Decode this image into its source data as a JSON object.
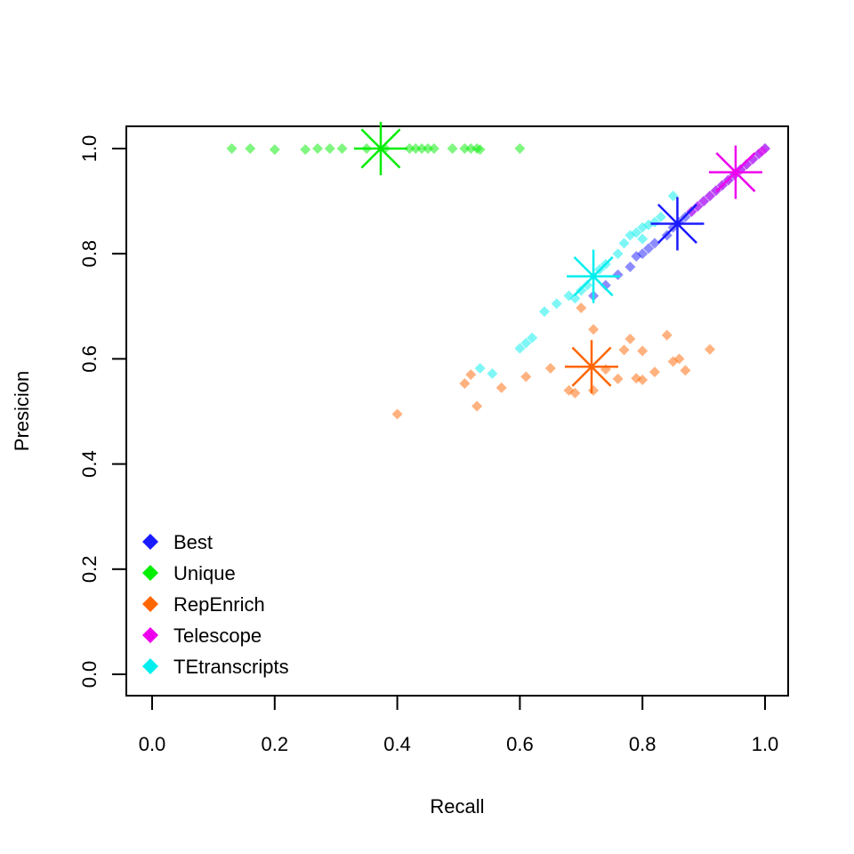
{
  "chart_data": {
    "type": "scatter",
    "title": "",
    "xlabel": "Recall",
    "ylabel": "Presicion",
    "xlim": [
      0,
      1
    ],
    "ylim": [
      0,
      1
    ],
    "x_ticks": [
      "0.0",
      "0.2",
      "0.4",
      "0.6",
      "0.8",
      "1.0"
    ],
    "y_ticks": [
      "0.0",
      "0.2",
      "0.4",
      "0.6",
      "0.8",
      "1.0"
    ],
    "grid": false,
    "legend_position": "bottom-left",
    "series": [
      {
        "name": "Best",
        "color": "#1a1aff",
        "points": [
          [
            0.72,
            0.72
          ],
          [
            0.74,
            0.74
          ],
          [
            0.76,
            0.76
          ],
          [
            0.78,
            0.775
          ],
          [
            0.79,
            0.795
          ],
          [
            0.8,
            0.8
          ],
          [
            0.81,
            0.81
          ],
          [
            0.82,
            0.82
          ],
          [
            0.84,
            0.835
          ],
          [
            0.85,
            0.85
          ],
          [
            0.86,
            0.86
          ],
          [
            0.87,
            0.87
          ],
          [
            0.88,
            0.88
          ],
          [
            0.89,
            0.89
          ],
          [
            0.9,
            0.9
          ],
          [
            0.91,
            0.91
          ],
          [
            0.92,
            0.92
          ],
          [
            0.93,
            0.93
          ],
          [
            0.94,
            0.94
          ],
          [
            0.95,
            0.95
          ],
          [
            0.96,
            0.96
          ],
          [
            0.97,
            0.97
          ],
          [
            0.98,
            0.98
          ],
          [
            0.99,
            0.99
          ],
          [
            1.0,
            1.0
          ]
        ],
        "mean": [
          0.857,
          0.857
        ]
      },
      {
        "name": "Unique",
        "color": "#00ee00",
        "points": [
          [
            0.13,
            1.0
          ],
          [
            0.16,
            1.0
          ],
          [
            0.2,
            0.998
          ],
          [
            0.25,
            0.998
          ],
          [
            0.27,
            1.0
          ],
          [
            0.29,
            1.0
          ],
          [
            0.31,
            1.0
          ],
          [
            0.35,
            1.0
          ],
          [
            0.38,
            1.0
          ],
          [
            0.42,
            1.0
          ],
          [
            0.43,
            1.0
          ],
          [
            0.44,
            1.0
          ],
          [
            0.45,
            1.0
          ],
          [
            0.46,
            1.0
          ],
          [
            0.49,
            1.0
          ],
          [
            0.51,
            1.0
          ],
          [
            0.52,
            1.0
          ],
          [
            0.53,
            1.0
          ],
          [
            0.535,
            0.998
          ],
          [
            0.6,
            1.0
          ]
        ],
        "mean": [
          0.373,
          1.0
        ]
      },
      {
        "name": "RepEnrich",
        "color": "#ff6600",
        "points": [
          [
            0.4,
            0.495
          ],
          [
            0.51,
            0.553
          ],
          [
            0.52,
            0.57
          ],
          [
            0.53,
            0.51
          ],
          [
            0.57,
            0.545
          ],
          [
            0.61,
            0.566
          ],
          [
            0.65,
            0.582
          ],
          [
            0.68,
            0.54
          ],
          [
            0.69,
            0.535
          ],
          [
            0.7,
            0.697
          ],
          [
            0.72,
            0.656
          ],
          [
            0.72,
            0.54
          ],
          [
            0.74,
            0.58
          ],
          [
            0.76,
            0.562
          ],
          [
            0.77,
            0.617
          ],
          [
            0.78,
            0.638
          ],
          [
            0.79,
            0.563
          ],
          [
            0.8,
            0.56
          ],
          [
            0.8,
            0.615
          ],
          [
            0.82,
            0.575
          ],
          [
            0.84,
            0.645
          ],
          [
            0.85,
            0.595
          ],
          [
            0.86,
            0.6
          ],
          [
            0.87,
            0.578
          ],
          [
            0.91,
            0.618
          ]
        ],
        "mean": [
          0.717,
          0.585
        ]
      },
      {
        "name": "Telescope",
        "color": "#ee00ee",
        "points": [
          [
            0.88,
            0.88
          ],
          [
            0.89,
            0.89
          ],
          [
            0.9,
            0.9
          ],
          [
            0.91,
            0.91
          ],
          [
            0.92,
            0.92
          ],
          [
            0.93,
            0.93
          ],
          [
            0.94,
            0.94
          ],
          [
            0.95,
            0.95
          ],
          [
            0.96,
            0.96
          ],
          [
            0.97,
            0.97
          ],
          [
            0.98,
            0.98
          ],
          [
            0.99,
            0.99
          ],
          [
            0.995,
            0.995
          ],
          [
            1.0,
            1.0
          ]
        ],
        "mean": [
          0.952,
          0.955
        ]
      },
      {
        "name": "TEtranscripts",
        "color": "#00eeee",
        "points": [
          [
            0.535,
            0.582
          ],
          [
            0.555,
            0.572
          ],
          [
            0.6,
            0.62
          ],
          [
            0.61,
            0.63
          ],
          [
            0.62,
            0.64
          ],
          [
            0.64,
            0.69
          ],
          [
            0.66,
            0.705
          ],
          [
            0.68,
            0.72
          ],
          [
            0.69,
            0.715
          ],
          [
            0.7,
            0.73
          ],
          [
            0.71,
            0.74
          ],
          [
            0.73,
            0.77
          ],
          [
            0.74,
            0.78
          ],
          [
            0.76,
            0.8
          ],
          [
            0.77,
            0.82
          ],
          [
            0.78,
            0.835
          ],
          [
            0.79,
            0.84
          ],
          [
            0.8,
            0.85
          ],
          [
            0.81,
            0.855
          ],
          [
            0.8,
            0.828
          ],
          [
            0.82,
            0.86
          ],
          [
            0.83,
            0.87
          ],
          [
            0.85,
            0.91
          ]
        ],
        "mean": [
          0.72,
          0.757
        ]
      }
    ]
  }
}
